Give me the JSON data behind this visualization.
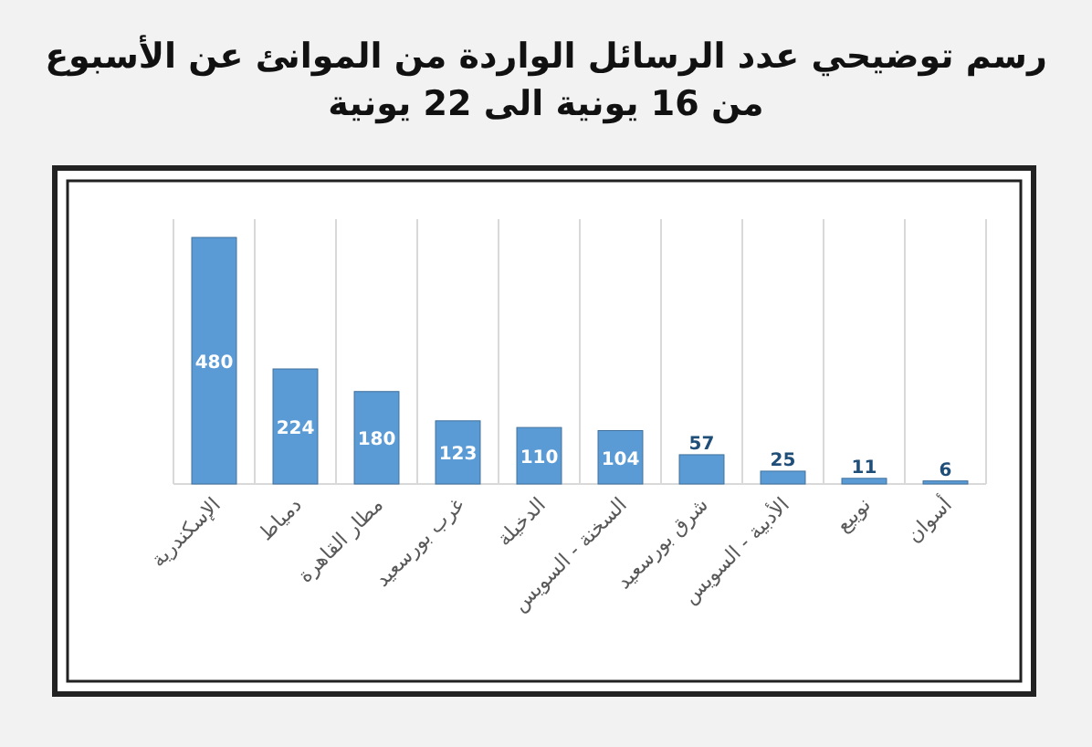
{
  "chart_data": {
    "type": "bar",
    "title": "رسم توضيحي عدد الرسائل الواردة من الموانئ عن الأسبوع من 16 يونية الى 22 يونية",
    "categories": [
      "الإسكندرية",
      "دمياط",
      "مطار القاهرة",
      "غرب بورسعيد",
      "الدخيلة",
      "السخنة - السويس",
      "شرق بورسعيد",
      "الأدبية - السويس",
      "نويبع",
      "أسوان"
    ],
    "values": [
      480,
      224,
      180,
      123,
      110,
      104,
      57,
      25,
      11,
      6
    ],
    "color": "#5b9bd5",
    "data_labels": true,
    "grid": "x"
  }
}
